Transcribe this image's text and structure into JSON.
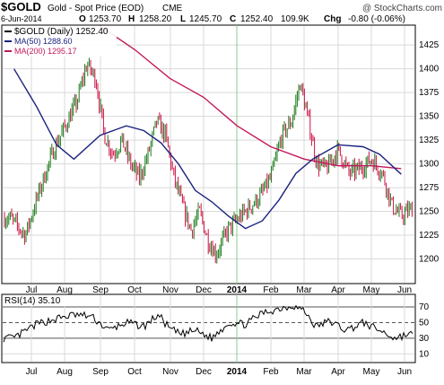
{
  "header": {
    "symbol": "$GOLD",
    "name": "Gold - Spot Price (EOD)",
    "exchange": "CME",
    "watermark": "@ StockCharts.com",
    "date": "6-Jun-2014",
    "quote": {
      "open_label": "O",
      "open": "1253.70",
      "high_label": "H",
      "high": "1258.20",
      "low_label": "L",
      "low": "1245.70",
      "close_label": "C",
      "close": "1252.40",
      "volume": "109.9K",
      "chg_label": "Chg",
      "chg": "-0.80 (-0.06%)"
    }
  },
  "legend": {
    "price": "$GOLD (Daily) 1252.40",
    "ma50": "MA(50) 1288.60",
    "ma200": "MA(200) 1295.17",
    "rsi": "RSI(14) 35.10"
  },
  "colors": {
    "up": "#1a7a1a",
    "down": "#cc1144",
    "ma50": "#1a237e",
    "ma200": "#c2185b",
    "grid": "#d9d9d9",
    "rsi": "#000000",
    "year_line": "#88cc88"
  },
  "x_axis": {
    "labels": [
      "Jul",
      "Aug",
      "Sep",
      "Oct",
      "Nov",
      "Dec",
      "2014",
      "Feb",
      "Mar",
      "Apr",
      "May",
      "Jun"
    ],
    "bold": "2014"
  },
  "chart_data": [
    {
      "type": "candlestick",
      "title": "Gold - Spot Price (EOD)",
      "ylim": [
        1175,
        1445
      ],
      "y_ticks": [
        1200,
        1225,
        1250,
        1275,
        1300,
        1325,
        1350,
        1375,
        1400,
        1425
      ],
      "series": [
        {
          "name": "$GOLD (Daily)",
          "close_path": [
            [
              "Jul",
              1243
            ],
            [
              "Jul",
              1225
            ],
            [
              "Jul",
              1275
            ],
            [
              "Aug",
              1315
            ],
            [
              "Aug",
              1340
            ],
            [
              "Aug",
              1365
            ],
            [
              "Sep",
              1405
            ],
            [
              "Sep",
              1390
            ],
            [
              "Sep",
              1330
            ],
            [
              "Sep",
              1310
            ],
            [
              "Oct",
              1325
            ],
            [
              "Oct",
              1300
            ],
            [
              "Oct",
              1285
            ],
            [
              "Oct",
              1310
            ],
            [
              "Nov",
              1345
            ],
            [
              "Nov",
              1330
            ],
            [
              "Nov",
              1285
            ],
            [
              "Nov",
              1255
            ],
            [
              "Dec",
              1230
            ],
            [
              "Dec",
              1250
            ],
            [
              "Dec",
              1220
            ],
            [
              "Dec",
              1205
            ],
            [
              "2014",
              1232
            ],
            [
              "2014",
              1250
            ],
            [
              "Feb",
              1265
            ],
            [
              "Feb",
              1285
            ],
            [
              "Feb",
              1330
            ],
            [
              "Mar",
              1345
            ],
            [
              "Mar",
              1385
            ],
            [
              "Mar",
              1345
            ],
            [
              "Mar",
              1300
            ],
            [
              "Apr",
              1295
            ],
            [
              "Apr",
              1315
            ],
            [
              "Apr",
              1290
            ],
            [
              "May",
              1295
            ],
            [
              "May",
              1305
            ],
            [
              "May",
              1290
            ],
            [
              "Jun",
              1255
            ],
            [
              "Jun",
              1245
            ],
            [
              "Jun",
              1252
            ]
          ]
        },
        {
          "name": "MA(50)",
          "values": [
            [
              "Jul",
              1400
            ],
            [
              "Jul",
              1360
            ],
            [
              "Aug",
              1320
            ],
            [
              "Aug",
              1305
            ],
            [
              "Sep",
              1330
            ],
            [
              "Oct",
              1340
            ],
            [
              "Oct",
              1335
            ],
            [
              "Nov",
              1322
            ],
            [
              "Nov",
              1300
            ],
            [
              "Dec",
              1272
            ],
            [
              "Dec",
              1260
            ],
            [
              "2014",
              1245
            ],
            [
              "2014",
              1232
            ],
            [
              "Feb",
              1240
            ],
            [
              "Feb",
              1262
            ],
            [
              "Mar",
              1290
            ],
            [
              "Mar",
              1305
            ],
            [
              "Apr",
              1320
            ],
            [
              "May",
              1318
            ],
            [
              "May",
              1310
            ],
            [
              "Jun",
              1289
            ]
          ]
        },
        {
          "name": "MA(200)",
          "values": [
            [
              "Sep",
              1445
            ],
            [
              "Oct",
              1420
            ],
            [
              "Nov",
              1390
            ],
            [
              "Dec",
              1370
            ],
            [
              "2014",
              1340
            ],
            [
              "Feb",
              1318
            ],
            [
              "Mar",
              1305
            ],
            [
              "Apr",
              1298
            ],
            [
              "May",
              1298
            ],
            [
              "Jun",
              1295
            ]
          ]
        }
      ]
    },
    {
      "type": "line",
      "title": "RSI(14)",
      "ylim": [
        0,
        85
      ],
      "y_ticks": [
        10,
        30,
        50,
        70
      ],
      "reference_lines": [
        30,
        50,
        70
      ],
      "series": [
        {
          "name": "RSI(14)",
          "values": [
            [
              "Jul",
              30
            ],
            [
              "Jul",
              48
            ],
            [
              "Aug",
              55
            ],
            [
              "Aug",
              60
            ],
            [
              "Sep",
              58
            ],
            [
              "Sep",
              40
            ],
            [
              "Oct",
              50
            ],
            [
              "Oct",
              45
            ],
            [
              "Nov",
              60
            ],
            [
              "Nov",
              42
            ],
            [
              "Nov",
              35
            ],
            [
              "Dec",
              40
            ],
            [
              "Dec",
              30
            ],
            [
              "2014",
              50
            ],
            [
              "2014",
              48
            ],
            [
              "Feb",
              62
            ],
            [
              "Feb",
              68
            ],
            [
              "Mar",
              72
            ],
            [
              "Mar",
              65
            ],
            [
              "Mar",
              45
            ],
            [
              "Apr",
              52
            ],
            [
              "Apr",
              40
            ],
            [
              "May",
              50
            ],
            [
              "May",
              40
            ],
            [
              "Jun",
              30
            ],
            [
              "Jun",
              35
            ]
          ]
        }
      ]
    }
  ]
}
